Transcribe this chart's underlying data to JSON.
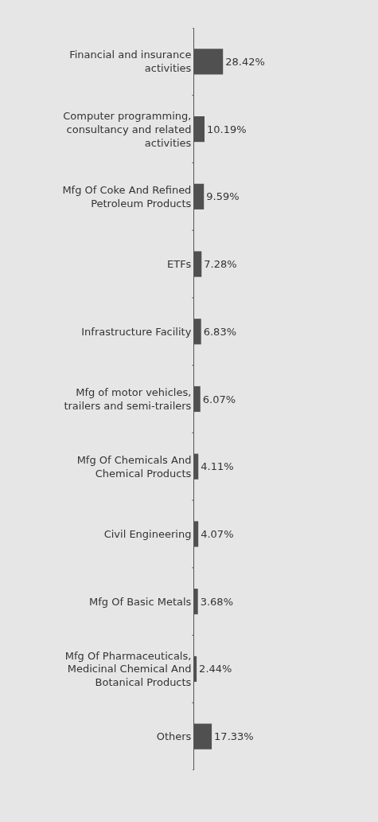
{
  "chart_data": {
    "type": "bar",
    "orientation": "horizontal",
    "color": "#505050",
    "categories": [
      "Financial and insurance activities",
      "Computer programming, consultancy and related activities",
      "Mfg Of Coke And Refined Petroleum Products",
      "ETFs",
      "Infrastructure Facility",
      "Mfg of motor vehicles, trailers and semi-trailers",
      "Mfg Of Chemicals And Chemical Products",
      "Civil Engineering",
      "Mfg Of Basic Metals",
      "Mfg Of Pharmaceuticals, Medicinal Chemical And Botanical Products",
      "Others"
    ],
    "values": [
      28.42,
      10.19,
      9.59,
      7.28,
      6.83,
      6.07,
      4.11,
      4.07,
      3.68,
      2.44,
      17.33
    ],
    "value_labels": [
      "28.42%",
      "10.19%",
      "9.59%",
      "7.28%",
      "6.83%",
      "6.07%",
      "4.11%",
      "4.07%",
      "3.68%",
      "2.44%",
      "17.33%"
    ]
  }
}
